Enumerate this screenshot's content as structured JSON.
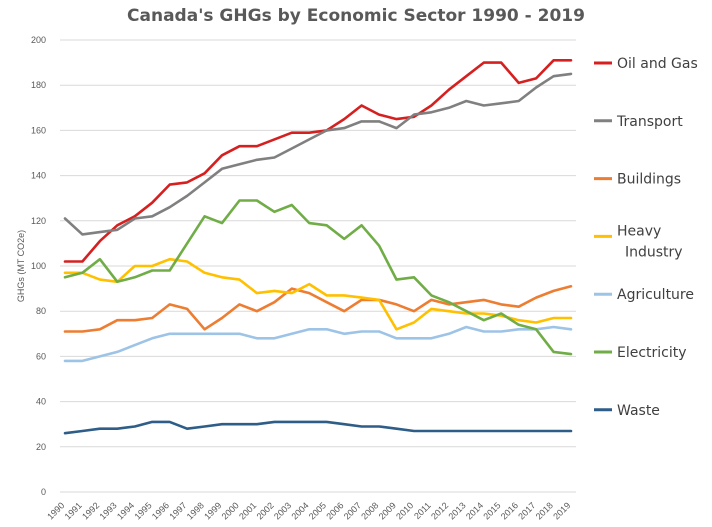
{
  "chart_data": {
    "type": "line",
    "title": "Canada's GHGs by Economic Sector 1990 - 2019",
    "xlabel": "",
    "ylabel": "GHGs (MT CO2e)",
    "ylim": [
      0,
      200
    ],
    "yticks": [
      0,
      20,
      40,
      60,
      80,
      100,
      120,
      140,
      160,
      180,
      200
    ],
    "grid": "horizontal",
    "legend": "right",
    "x": [
      "1990",
      "1991",
      "1992",
      "1993",
      "1994",
      "1995",
      "1996",
      "1997",
      "1998",
      "1999",
      "2000",
      "2001",
      "2002",
      "2003",
      "2004",
      "2005",
      "2006",
      "2007",
      "2008",
      "2009",
      "2010",
      "2011",
      "2012",
      "2013",
      "2014",
      "2015",
      "2016",
      "2017",
      "2018",
      "2019"
    ],
    "series": [
      {
        "name": "Oil and Gas",
        "color": "#d62020",
        "values": [
          102,
          102,
          111,
          118,
          122,
          128,
          136,
          137,
          141,
          149,
          153,
          153,
          156,
          159,
          159,
          160,
          165,
          171,
          167,
          165,
          166,
          171,
          178,
          184,
          190,
          190,
          181,
          183,
          191,
          191
        ]
      },
      {
        "name": "Transport",
        "color": "#808080",
        "values": [
          121,
          114,
          115,
          116,
          121,
          122,
          126,
          131,
          137,
          143,
          145,
          147,
          148,
          152,
          156,
          160,
          161,
          164,
          164,
          161,
          167,
          168,
          170,
          173,
          171,
          172,
          173,
          179,
          184,
          185
        ]
      },
      {
        "name": "Buildings",
        "color": "#ed7d31",
        "values": [
          71,
          71,
          72,
          76,
          76,
          77,
          83,
          81,
          72,
          77,
          83,
          80,
          84,
          90,
          88,
          84,
          80,
          85,
          85,
          83,
          80,
          85,
          83,
          84,
          85,
          83,
          82,
          86,
          89,
          91
        ]
      },
      {
        "name": "Heavy Industry",
        "color": "#ffc000",
        "values": [
          97,
          97,
          94,
          93,
          100,
          100,
          103,
          102,
          97,
          95,
          94,
          88,
          89,
          88,
          92,
          87,
          87,
          86,
          85,
          72,
          75,
          81,
          80,
          79,
          79,
          78,
          76,
          75,
          77,
          77
        ]
      },
      {
        "name": "Agriculture",
        "color": "#9dc3e6",
        "values": [
          58,
          58,
          60,
          62,
          65,
          68,
          70,
          70,
          70,
          70,
          70,
          68,
          68,
          70,
          72,
          72,
          70,
          71,
          71,
          68,
          68,
          68,
          70,
          73,
          71,
          71,
          72,
          72,
          73,
          72
        ]
      },
      {
        "name": "Electricity",
        "color": "#70ad47",
        "values": [
          95,
          97,
          103,
          93,
          95,
          98,
          98,
          110,
          122,
          119,
          129,
          129,
          124,
          127,
          119,
          118,
          112,
          118,
          109,
          94,
          95,
          87,
          84,
          80,
          76,
          79,
          74,
          72,
          62,
          61
        ]
      },
      {
        "name": "Waste",
        "color": "#2e5d88",
        "values": [
          26,
          27,
          28,
          28,
          29,
          31,
          31,
          28,
          29,
          30,
          30,
          30,
          31,
          31,
          31,
          31,
          30,
          29,
          29,
          28,
          27,
          27,
          27,
          27,
          27,
          27,
          27,
          27,
          27,
          27
        ]
      }
    ]
  }
}
